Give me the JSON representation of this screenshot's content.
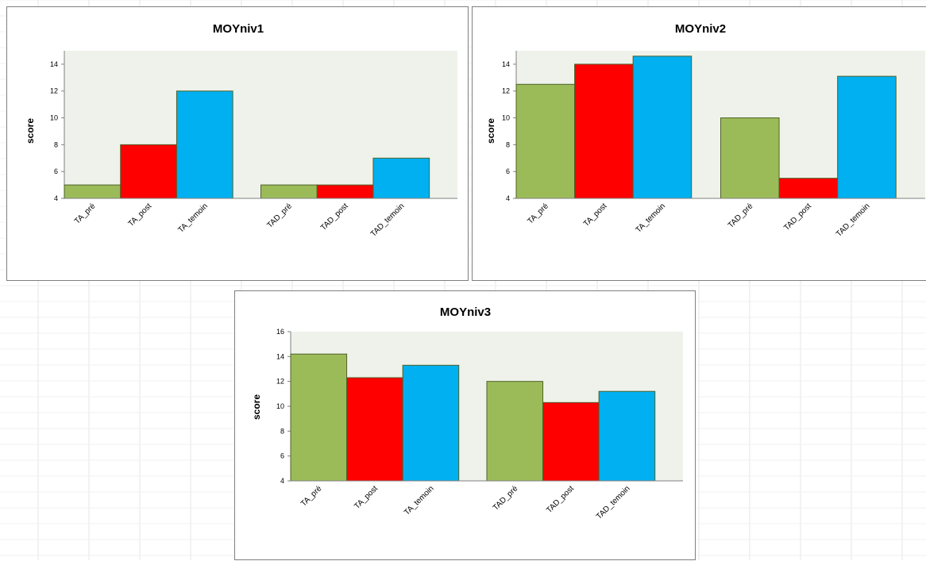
{
  "colors": {
    "pre": "#9BBB59",
    "post": "#FF0000",
    "temoin": "#00B0F0",
    "bar_outline": "#4F6228",
    "plot_background": "#EFF2EA"
  },
  "chart_data": [
    {
      "type": "bar",
      "title": "MOYniv1",
      "ylabel": "score",
      "xlabel": "",
      "ylim": [
        4,
        15
      ],
      "yticks": [
        "4",
        "6",
        "8",
        "10",
        "12",
        "14"
      ],
      "grid": false,
      "categories": [
        "TA_pré",
        "TA_post",
        "TA_temoin",
        "TAD_pré",
        "TAD_post",
        "TAD_temoin"
      ],
      "values": [
        5,
        8,
        12,
        5,
        5,
        7
      ]
    },
    {
      "type": "bar",
      "title": "MOYniv2",
      "ylabel": "score",
      "xlabel": "",
      "ylim": [
        4,
        15
      ],
      "yticks": [
        "4",
        "6",
        "8",
        "10",
        "12",
        "14"
      ],
      "grid": false,
      "categories": [
        "TA_pré",
        "TA_post",
        "TA_temoin",
        "TAD_pré",
        "TAD_post",
        "TAD_temoin"
      ],
      "values": [
        12.5,
        14,
        14.6,
        10,
        5.5,
        13.1
      ]
    },
    {
      "type": "bar",
      "title": "MOYniv3",
      "ylabel": "score",
      "xlabel": "",
      "ylim": [
        4,
        16
      ],
      "yticks": [
        "4",
        "6",
        "8",
        "10",
        "12",
        "14",
        "16"
      ],
      "grid": false,
      "categories": [
        "TA_pré",
        "TA_post",
        "TA_temoin",
        "TAD_pré",
        "TAD_post",
        "TAD_temoin"
      ],
      "values": [
        14.2,
        12.3,
        13.3,
        12,
        10.3,
        11.2
      ]
    }
  ]
}
